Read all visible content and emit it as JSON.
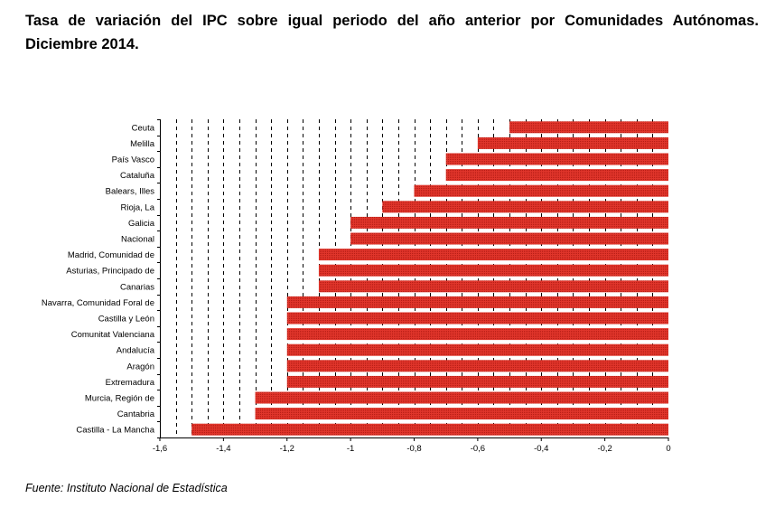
{
  "title": "Tasa de variación del IPC sobre igual periodo del año anterior por Comunidades Autónomas. Diciembre 2014.",
  "source": "Fuente: Instituto Nacional de Estadística",
  "chart_data": {
    "type": "bar",
    "orientation": "horizontal",
    "categories": [
      "Ceuta",
      "Melilla",
      "País Vasco",
      "Cataluña",
      "Balears, Illes",
      "Rioja, La",
      "Galicia",
      "Nacional",
      "Madrid, Comunidad de",
      "Asturias, Principado de",
      "Canarias",
      "Navarra, Comunidad Foral de",
      "Castilla y León",
      "Comunitat Valenciana",
      "Andalucía",
      "Aragón",
      "Extremadura",
      "Murcia, Región de",
      "Cantabria",
      "Castilla - La Mancha"
    ],
    "values": [
      -0.5,
      -0.6,
      -0.7,
      -0.7,
      -0.8,
      -0.9,
      -1.0,
      -1.0,
      -1.1,
      -1.1,
      -1.1,
      -1.2,
      -1.2,
      -1.2,
      -1.2,
      -1.2,
      -1.2,
      -1.3,
      -1.3,
      -1.5
    ],
    "xlim": [
      -1.6,
      0
    ],
    "xticks": [
      -1.6,
      -1.4,
      -1.2,
      -1,
      -0.8,
      -0.6,
      -0.4,
      -0.2,
      0
    ],
    "xtick_labels": [
      "-1,6",
      "-1,4",
      "-1,2",
      "-1",
      "-0,8",
      "-0,6",
      "-0,4",
      "-0,2",
      "0"
    ],
    "grid": "vertical-dashed",
    "bar_color": "#e0352b"
  }
}
